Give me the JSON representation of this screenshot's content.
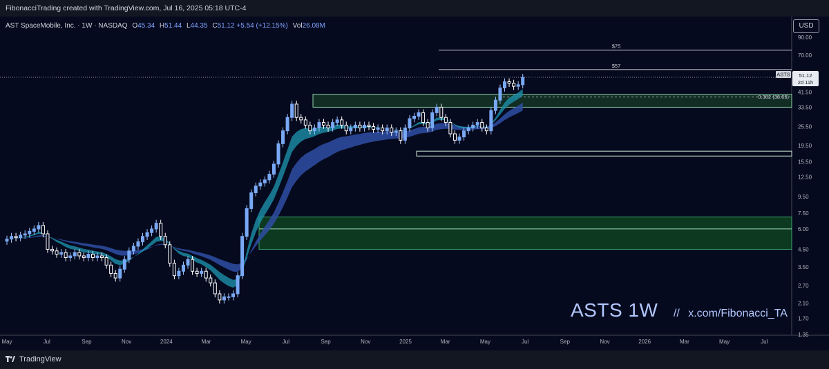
{
  "header": {
    "text": "FibonacciTrading created with TradingView.com, Jul 16, 2025 05:18 UTC-4"
  },
  "legend": {
    "title": "AST SpaceMobile, Inc. · 1W · NASDAQ",
    "open_label": "O",
    "open": "45.34",
    "high_label": "H",
    "high": "51.44",
    "low_label": "L",
    "low": "44.35",
    "close_label": "C",
    "close": "51.12",
    "change": "+5.54 (+12.15%)",
    "vol_label": "Vol",
    "vol": "26.08M"
  },
  "currency_button": "USD",
  "watermark": {
    "title": "ASTS 1W",
    "separator": "//",
    "handle": "x.com/Fibonacci_TA"
  },
  "footer": {
    "brand": "TradingView"
  },
  "colors": {
    "up": "#9ec7ff",
    "down": "#ffffff",
    "bull_body": "#79a8f5",
    "ribbon_slow": "#2f4ea3",
    "ribbon_fast": "#1c8fa8",
    "zone_fill": "#1c4a2a",
    "zone_line": "#3aa36b",
    "bg": "#060a1e"
  },
  "chart_data": {
    "type": "candlestick",
    "symbol": "ASTS",
    "timeframe": "1W",
    "y_scale": "log",
    "ylim": [
      1.2,
      120
    ],
    "y_ticks": [
      90.0,
      70.0,
      54.0,
      41.5,
      33.5,
      25.5,
      19.5,
      15.5,
      12.5,
      9.5,
      7.5,
      6.0,
      4.5,
      3.5,
      2.7,
      2.1,
      1.7,
      1.35
    ],
    "x_ticks": [
      "May",
      "Jul",
      "Sep",
      "Nov",
      "2024",
      "Mar",
      "May",
      "Jul",
      "Sep",
      "Nov",
      "2025",
      "Mar",
      "May",
      "Jul",
      "Sep",
      "Nov",
      "2026",
      "Mar",
      "May",
      "Jul"
    ],
    "last_price": {
      "label": "ASTS",
      "value": "51.12",
      "countdown": "2d 11h"
    },
    "horizontal_levels": [
      {
        "label": "$75",
        "value": 75
      },
      {
        "label": "$57",
        "value": 57
      }
    ],
    "fib_level": {
      "label": "0.382 (38.65)",
      "value": 38.65
    },
    "zones": [
      {
        "name": "resistance-zone",
        "low": 33.5,
        "high": 40.2
      },
      {
        "name": "support-zone",
        "low": 16.8,
        "high": 18.0
      },
      {
        "name": "demand-zone",
        "low": 4.5,
        "high": 7.1,
        "mid": 6.0
      }
    ],
    "weekly_closes": [
      5.2,
      5.4,
      5.3,
      5.5,
      5.6,
      5.8,
      6.0,
      6.3,
      5.6,
      4.5,
      4.4,
      4.2,
      4.3,
      4.0,
      4.1,
      4.3,
      4.1,
      4.0,
      4.2,
      4.0,
      4.1,
      4.0,
      3.6,
      3.2,
      3.0,
      3.4,
      3.9,
      4.4,
      4.7,
      5.0,
      5.4,
      5.7,
      6.0,
      6.5,
      5.4,
      4.8,
      3.7,
      3.1,
      3.3,
      3.6,
      3.9,
      3.3,
      3.2,
      3.3,
      3.0,
      2.8,
      2.4,
      2.2,
      2.3,
      2.3,
      2.4,
      3.1,
      5.4,
      8.0,
      10.0,
      11.0,
      11.5,
      12.0,
      13.0,
      15.0,
      20.0,
      24.0,
      29.0,
      35.0,
      29.0,
      28.0,
      26.0,
      24.0,
      25.0,
      27.0,
      26.0,
      25.0,
      27.0,
      28.0,
      26.0,
      24.0,
      25.0,
      26.0,
      25.0,
      26.0,
      25.5,
      24.5,
      25.0,
      24.0,
      25.0,
      23.5,
      24.0,
      21.0,
      25.0,
      28.5,
      29.5,
      31.0,
      27.0,
      25.0,
      31.0,
      33.5,
      29.0,
      27.0,
      23.0,
      21.0,
      22.0,
      24.0,
      25.0,
      26.0,
      27.0,
      25.0,
      24.0,
      32.0,
      37.0,
      44.0,
      48.0,
      47.0,
      45.0,
      46.0,
      51.12
    ]
  }
}
